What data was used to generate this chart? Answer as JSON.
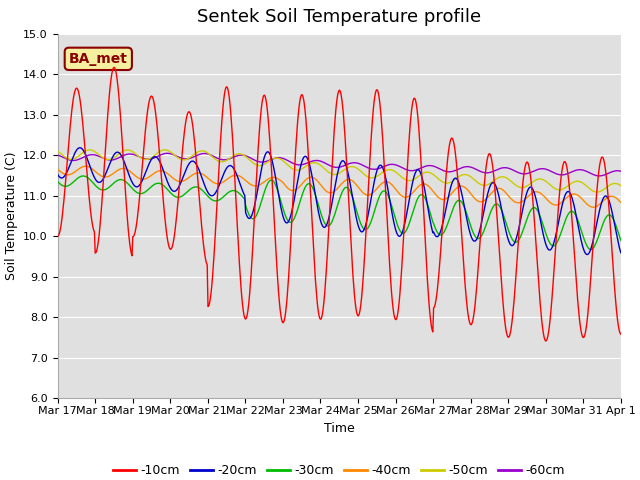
{
  "title": "Sentek Soil Temperature profile",
  "xlabel": "Time",
  "ylabel": "Soil Temperature (C)",
  "ylim": [
    6.0,
    15.0
  ],
  "yticks": [
    6.0,
    7.0,
    8.0,
    9.0,
    10.0,
    11.0,
    12.0,
    13.0,
    14.0,
    15.0
  ],
  "background_color": "#ffffff",
  "plot_bg_color": "#e0e0e0",
  "grid_color": "#ffffff",
  "annotation_text": "BA_met",
  "annotation_bg": "#f5f0a0",
  "annotation_border": "#8B0000",
  "series_colors": [
    "#ff0000",
    "#0000cc",
    "#00bb00",
    "#ff8800",
    "#cccc00",
    "#9900cc"
  ],
  "series_labels": [
    "-10cm",
    "-20cm",
    "-30cm",
    "-40cm",
    "-50cm",
    "-60cm"
  ],
  "title_fontsize": 13,
  "axis_label_fontsize": 9,
  "tick_label_fontsize": 8,
  "legend_fontsize": 9
}
